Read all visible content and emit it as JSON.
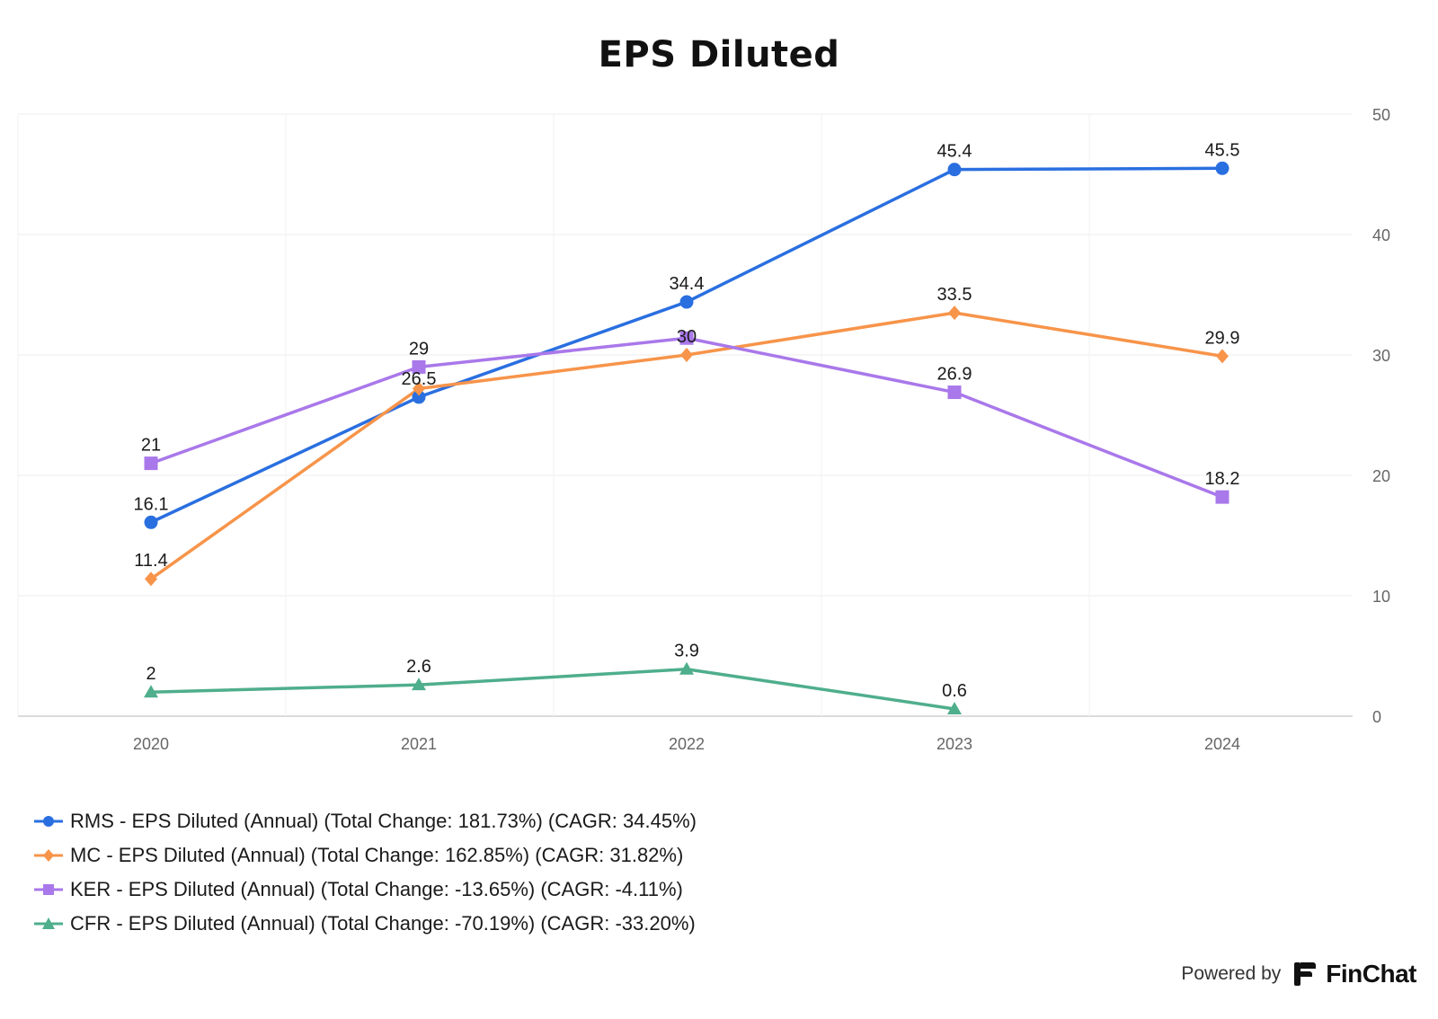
{
  "chart_data": {
    "type": "line",
    "title": "EPS Diluted",
    "categories": [
      "2020",
      "2021",
      "2022",
      "2023",
      "2024"
    ],
    "ylim": [
      0,
      50
    ],
    "yticks": [
      0,
      10,
      20,
      30,
      40,
      50
    ],
    "grid": true,
    "y_axis_side": "right",
    "legend_position": "bottom-left",
    "series": [
      {
        "name": "RMS - EPS Diluted (Annual) (Total Change: 181.73%) (CAGR: 34.45%)",
        "values": [
          16.1,
          26.5,
          34.4,
          45.4,
          45.5
        ],
        "labels": [
          "16.1",
          "26.5",
          "34.4",
          "45.4",
          "45.5"
        ],
        "color": "#2a6fe0",
        "marker": "circle"
      },
      {
        "name": "MC - EPS Diluted (Annual) (Total Change: 162.85%) (CAGR: 31.82%)",
        "values": [
          11.4,
          27.2,
          30.0,
          33.5,
          29.9
        ],
        "labels": [
          "11.4",
          "",
          "30",
          "33.5",
          "29.9"
        ],
        "color": "#f7944a",
        "marker": "diamond"
      },
      {
        "name": "KER - EPS Diluted (Annual) (Total Change: -13.65%) (CAGR: -4.11%)",
        "values": [
          21.0,
          29.0,
          31.4,
          26.9,
          18.2
        ],
        "labels": [
          "21",
          "29",
          "",
          "26.9",
          "18.2"
        ],
        "color": "#a978ea",
        "marker": "square"
      },
      {
        "name": "CFR - EPS Diluted (Annual) (Total Change: -70.19%) (CAGR: -33.20%)",
        "values": [
          2.0,
          2.6,
          3.9,
          0.6,
          null
        ],
        "labels": [
          "2",
          "2.6",
          "3.9",
          "0.6",
          ""
        ],
        "color": "#4fae8c",
        "marker": "triangle"
      }
    ]
  },
  "footer": {
    "powered_by": "Powered by",
    "brand": "FinChat"
  }
}
